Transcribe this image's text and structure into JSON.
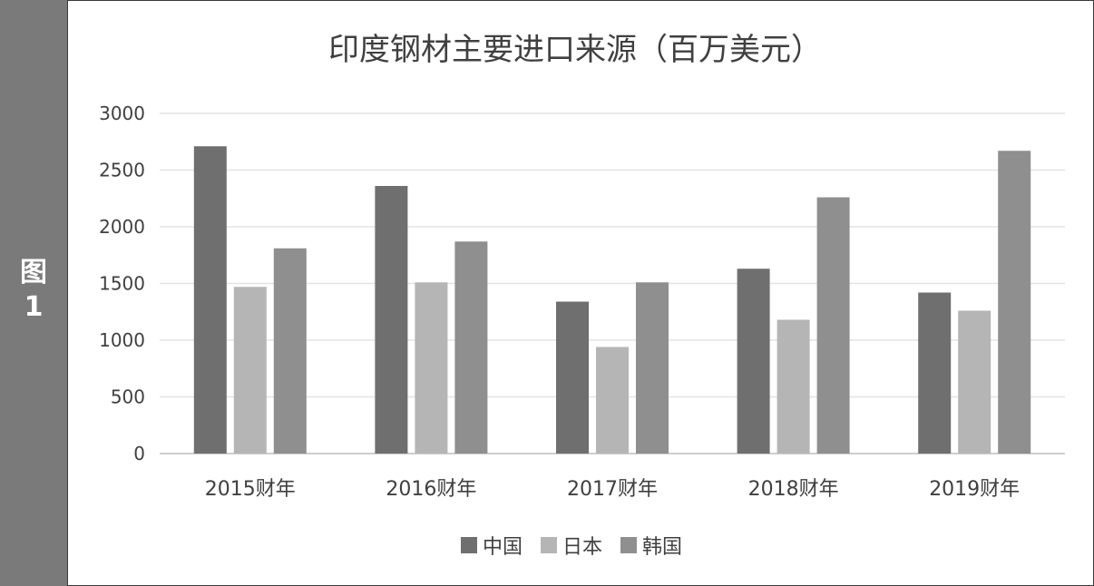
{
  "figure_label": {
    "line1": "图",
    "line2": "1"
  },
  "chart_data": {
    "type": "bar",
    "title": "印度钢材主要进口来源（百万美元）",
    "xlabel": "",
    "ylabel": "",
    "categories": [
      "2015财年",
      "2016财年",
      "2017财年",
      "2018财年",
      "2019财年"
    ],
    "series": [
      {
        "name": "中国",
        "color": "#6f6f6f",
        "values": [
          2710,
          2360,
          1340,
          1630,
          1420
        ]
      },
      {
        "name": "日本",
        "color": "#b5b5b5",
        "values": [
          1470,
          1510,
          940,
          1180,
          1260
        ]
      },
      {
        "name": "韩国",
        "color": "#8f8f8f",
        "values": [
          1810,
          1870,
          1510,
          2260,
          2670
        ]
      }
    ],
    "ylim": [
      0,
      3000
    ],
    "yticks": [
      0,
      500,
      1000,
      1500,
      2000,
      2500,
      3000
    ],
    "grid": true,
    "legend_position": "bottom"
  }
}
